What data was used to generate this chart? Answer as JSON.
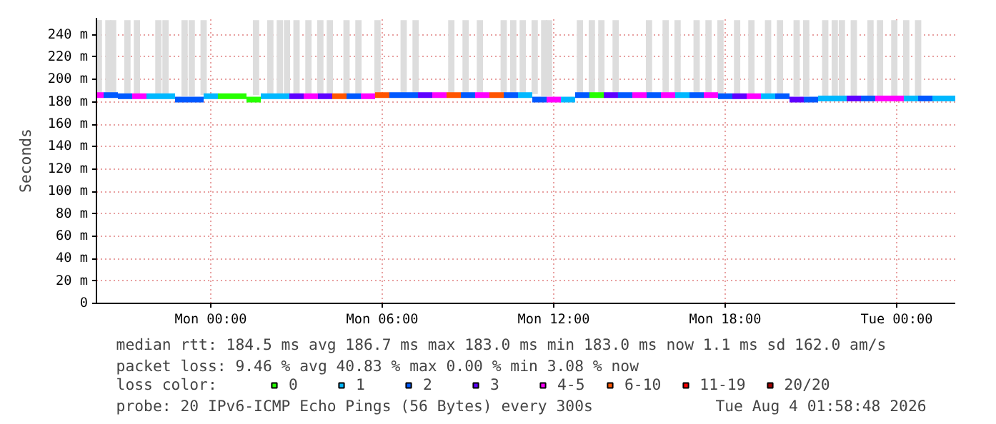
{
  "chart_data": {
    "type": "scatter",
    "ylabel": "Seconds",
    "xlim": [
      "2026-08-02T20:00",
      "2026-08-04T02:03"
    ],
    "xticks": [
      {
        "value": "2026-08-03T00:00",
        "label": "Mon 00:00"
      },
      {
        "value": "2026-08-03T06:00",
        "label": "Mon 06:00"
      },
      {
        "value": "2026-08-03T12:00",
        "label": "Mon 12:00"
      },
      {
        "value": "2026-08-03T18:00",
        "label": "Mon 18:00"
      },
      {
        "value": "2026-08-04T00:00",
        "label": "Tue 00:00"
      }
    ],
    "ylim": [
      0,
      255
    ],
    "yticks": [
      0,
      {
        "value": 20,
        "label": "20 m"
      },
      {
        "value": 40,
        "label": "40 m"
      },
      {
        "value": 60,
        "label": "60 m"
      },
      {
        "value": 80,
        "label": "80 m"
      },
      {
        "value": 100,
        "label": "100 m"
      },
      {
        "value": 120,
        "label": "120 m"
      },
      {
        "value": 140,
        "label": "140 m"
      },
      {
        "value": 160,
        "label": "160 m"
      },
      {
        "value": 180,
        "label": "180 m"
      },
      {
        "value": 200,
        "label": "200 m"
      },
      {
        "value": 220,
        "label": "220 m"
      },
      {
        "value": 240,
        "label": "240 m"
      }
    ],
    "grid": true,
    "legend": "bottom",
    "legend_title": "loss color:",
    "marker": "square",
    "series": [
      {
        "type": "bar",
        "color": "#dddddd",
        "x": [
          "2026-08-02T20:05",
          "2026-08-02T20:25",
          "2026-08-02T20:35",
          "2026-08-02T21:05",
          "2026-08-02T21:25",
          "2026-08-02T22:10",
          "2026-08-02T22:25",
          "2026-08-02T23:05",
          "2026-08-02T23:20",
          "2026-08-02T23:45",
          "2026-08-03T01:35",
          "2026-08-03T02:05",
          "2026-08-03T02:25",
          "2026-08-03T02:40",
          "2026-08-03T03:00",
          "2026-08-03T03:25",
          "2026-08-03T03:50",
          "2026-08-03T04:10",
          "2026-08-03T04:45",
          "2026-08-03T05:10",
          "2026-08-03T05:50",
          "2026-08-03T06:45",
          "2026-08-03T07:10",
          "2026-08-03T08:25",
          "2026-08-03T08:55",
          "2026-08-03T09:25",
          "2026-08-03T10:15",
          "2026-08-03T10:35",
          "2026-08-03T10:55",
          "2026-08-03T11:20",
          "2026-08-03T11:40",
          "2026-08-03T11:50",
          "2026-08-03T12:55",
          "2026-08-03T13:20",
          "2026-08-03T13:40",
          "2026-08-03T14:10",
          "2026-08-03T15:20",
          "2026-08-03T15:55",
          "2026-08-03T16:20",
          "2026-08-03T17:00",
          "2026-08-03T17:25",
          "2026-08-03T17:50",
          "2026-08-03T18:25",
          "2026-08-03T18:55",
          "2026-08-03T19:30",
          "2026-08-03T19:55",
          "2026-08-03T20:30",
          "2026-08-03T20:50",
          "2026-08-03T21:30",
          "2026-08-03T21:50",
          "2026-08-03T22:05",
          "2026-08-03T22:30",
          "2026-08-03T23:05",
          "2026-08-03T23:25",
          "2026-08-03T23:55",
          "2026-08-04T00:20",
          "2026-08-04T00:45"
        ],
        "base": [
          186,
          186,
          186,
          186,
          186,
          186,
          186,
          185,
          185,
          186,
          186,
          186,
          186,
          186,
          186,
          186,
          186,
          186,
          186,
          186,
          186,
          187,
          187,
          187,
          187,
          187,
          187,
          187,
          187,
          187,
          185,
          185,
          187,
          187,
          187,
          187,
          187,
          187,
          187,
          187,
          187,
          187,
          187,
          187,
          187,
          187,
          185,
          185,
          185,
          184,
          184,
          184,
          184,
          184,
          184,
          184,
          184
        ],
        "values": [
          67,
          67,
          67,
          67,
          67,
          67,
          67,
          68,
          68,
          67,
          67,
          67,
          67,
          67,
          67,
          67,
          67,
          67,
          67,
          67,
          67,
          66,
          66,
          66,
          66,
          66,
          66,
          66,
          66,
          66,
          68,
          68,
          66,
          66,
          66,
          66,
          66,
          66,
          66,
          66,
          66,
          66,
          66,
          66,
          66,
          66,
          68,
          68,
          68,
          69,
          69,
          69,
          69,
          69,
          69,
          69,
          69
        ]
      },
      {
        "name": "0",
        "color": "#26ff00",
        "x": [
          "2026-08-03T00:30",
          "2026-08-03T01:00",
          "2026-08-03T01:30",
          "2026-08-03T13:30"
        ],
        "values": [
          185,
          185,
          182,
          186
        ]
      },
      {
        "name": "1",
        "color": "#00b8ff",
        "x": [
          "2026-08-02T22:00",
          "2026-08-02T22:30",
          "2026-08-03T00:00",
          "2026-08-03T02:00",
          "2026-08-03T02:30",
          "2026-08-03T11:00",
          "2026-08-03T12:30",
          "2026-08-03T16:30",
          "2026-08-03T19:30",
          "2026-08-03T21:30",
          "2026-08-03T22:00",
          "2026-08-04T00:30",
          "2026-08-04T01:30",
          "2026-08-04T02:00"
        ],
        "values": [
          185,
          185,
          185,
          185,
          185,
          186,
          182,
          186,
          185,
          183,
          183,
          183,
          183,
          183
        ]
      },
      {
        "name": "2",
        "color": "#0059ff",
        "x": [
          "2026-08-02T20:30",
          "2026-08-02T21:00",
          "2026-08-02T23:00",
          "2026-08-02T23:30",
          "2026-08-03T05:00",
          "2026-08-03T06:30",
          "2026-08-03T07:00",
          "2026-08-03T09:00",
          "2026-08-03T10:30",
          "2026-08-03T11:30",
          "2026-08-03T13:00",
          "2026-08-03T14:30",
          "2026-08-03T15:30",
          "2026-08-03T17:00",
          "2026-08-03T18:00",
          "2026-08-03T20:00",
          "2026-08-03T21:00",
          "2026-08-03T23:00",
          "2026-08-04T01:00"
        ],
        "values": [
          186,
          185,
          182,
          182,
          185,
          186,
          186,
          186,
          186,
          182,
          186,
          186,
          186,
          186,
          185,
          185,
          182,
          183,
          183
        ]
      },
      {
        "name": "3",
        "color": "#5e00ff",
        "x": [
          "2026-08-03T03:00",
          "2026-08-03T04:00",
          "2026-08-03T07:30",
          "2026-08-03T14:00",
          "2026-08-03T18:30",
          "2026-08-03T20:30",
          "2026-08-03T22:30"
        ],
        "values": [
          185,
          185,
          186,
          186,
          185,
          182,
          183
        ]
      },
      {
        "name": "4-5",
        "color": "#ff00ff",
        "x": [
          "2026-08-02T20:00",
          "2026-08-02T21:30",
          "2026-08-03T03:30",
          "2026-08-03T05:30",
          "2026-08-03T08:00",
          "2026-08-03T09:30",
          "2026-08-03T12:00",
          "2026-08-03T15:00",
          "2026-08-03T16:00",
          "2026-08-03T17:30",
          "2026-08-03T19:00",
          "2026-08-03T23:30",
          "2026-08-04T00:00"
        ],
        "values": [
          186,
          185,
          185,
          185,
          186,
          186,
          182,
          186,
          186,
          186,
          185,
          183,
          183
        ]
      },
      {
        "name": "6-10",
        "color": "#ff5500",
        "x": [
          "2026-08-03T04:30",
          "2026-08-03T06:00",
          "2026-08-03T08:30",
          "2026-08-03T10:00"
        ],
        "values": [
          185,
          186,
          186,
          186
        ]
      },
      {
        "name": "11-19",
        "color": "#ff0000"
      },
      {
        "name": "20/20",
        "color": "#a10000"
      }
    ],
    "annotations": [
      "median rtt:  184.5 ms avg  186.7 ms max  183.0 ms min  183.0 ms now  1.1 ms sd  162.0   am/s",
      "packet loss: 9.46 % avg  40.83 % max  0.00 % min  3.08 % now",
      "probe:       20 IPv6-ICMP Echo Pings (56 Bytes) every 300s",
      "Tue Aug  4 01:58:48 2026"
    ]
  }
}
